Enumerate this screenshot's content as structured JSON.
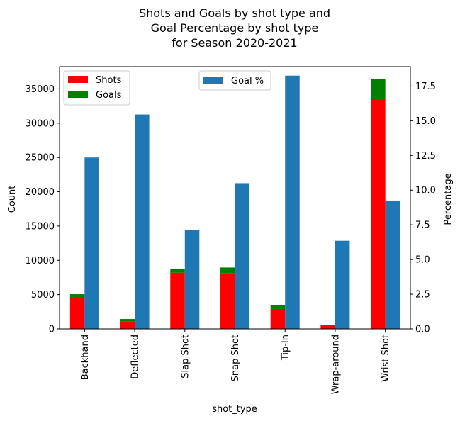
{
  "chart_data": {
    "type": "bar",
    "title_lines": [
      "Shots and Goals by shot type and",
      "Goal Percentage by shot type",
      "for Season 2020-2021"
    ],
    "xlabel": "shot_type",
    "ylabel_left": "Count",
    "ylabel_right": "Percentage",
    "categories": [
      "Backhand",
      "Deflected",
      "Slap Shot",
      "Snap Shot",
      "Tip-In",
      "Wrap-around",
      "Wrist Shot"
    ],
    "series": [
      {
        "name": "Shots",
        "axis": "left",
        "stack": "counts",
        "color": "#ff0000",
        "values": [
          4500,
          1100,
          8200,
          8100,
          2900,
          550,
          33500
        ]
      },
      {
        "name": "Goals",
        "axis": "left",
        "stack": "counts",
        "color": "#008000",
        "values": [
          560,
          340,
          590,
          850,
          510,
          40,
          3000
        ]
      },
      {
        "name": "Goal %",
        "axis": "right",
        "color": "#1f77b4",
        "values": [
          12.35,
          15.45,
          7.1,
          10.5,
          18.25,
          6.35,
          9.25
        ]
      }
    ],
    "ylim_left": [
      0,
      38250
    ],
    "yticks_left": [
      0,
      5000,
      10000,
      15000,
      20000,
      25000,
      30000,
      35000
    ],
    "ylim_right": [
      0,
      18.9
    ],
    "yticks_right": [
      0.0,
      2.5,
      5.0,
      7.5,
      10.0,
      12.5,
      15.0,
      17.5
    ],
    "ytick_labels_right": [
      "0.0",
      "2.5",
      "5.0",
      "7.5",
      "10.0",
      "12.5",
      "15.0",
      "17.5"
    ],
    "legend_left": {
      "placement": "upper-left",
      "entries": [
        "Shots",
        "Goals"
      ]
    },
    "legend_right": {
      "placement": "upper-center",
      "entries": [
        "Goal %"
      ]
    }
  }
}
